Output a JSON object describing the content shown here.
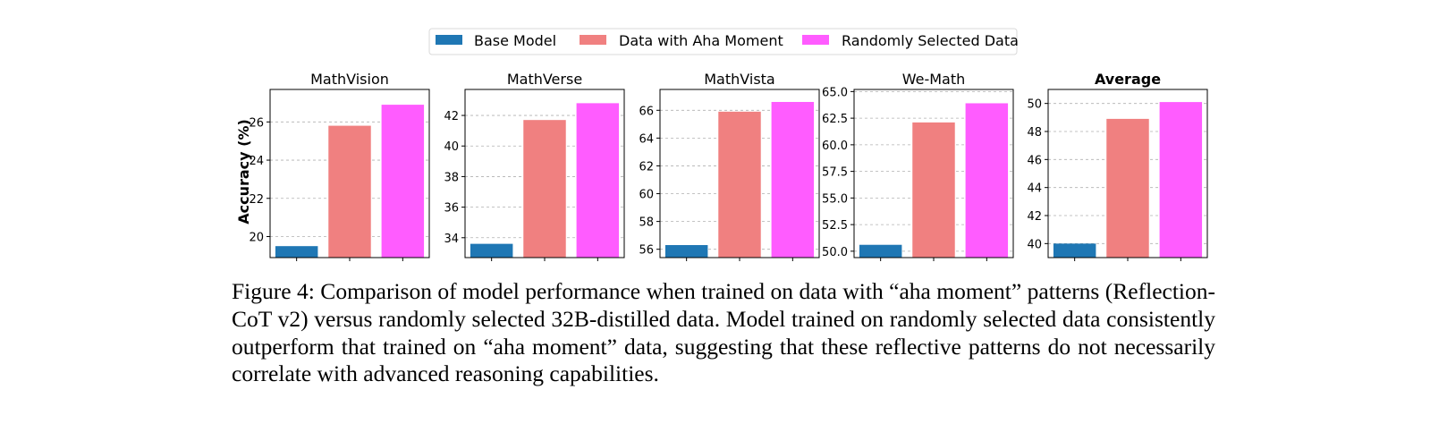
{
  "legend": {
    "items": [
      {
        "label": "Base Model",
        "color": "#1f77b4"
      },
      {
        "label": "Data with Aha Moment",
        "color": "#f08080"
      },
      {
        "label": "Randomly Selected Data",
        "color": "#ff5cff"
      }
    ]
  },
  "chart_data": [
    {
      "type": "bar",
      "title": "MathVision",
      "ylabel": "Accuracy (%)",
      "categories": [
        "Base Model",
        "Data with Aha Moment",
        "Randomly Selected Data"
      ],
      "values": [
        19.5,
        25.8,
        26.9
      ],
      "ylim": [
        18.9,
        27.7
      ],
      "yticks": [
        "20",
        "22",
        "24",
        "26"
      ],
      "grid": true
    },
    {
      "type": "bar",
      "title": "MathVerse",
      "categories": [
        "Base Model",
        "Data with Aha Moment",
        "Randomly Selected Data"
      ],
      "values": [
        33.6,
        41.7,
        42.8
      ],
      "ylim": [
        32.7,
        43.7
      ],
      "yticks": [
        "34",
        "36",
        "38",
        "40",
        "42"
      ],
      "grid": true
    },
    {
      "type": "bar",
      "title": "MathVista",
      "categories": [
        "Base Model",
        "Data with Aha Moment",
        "Randomly Selected Data"
      ],
      "values": [
        56.3,
        65.9,
        66.6
      ],
      "ylim": [
        55.4,
        67.5
      ],
      "yticks": [
        "56",
        "58",
        "60",
        "62",
        "64",
        "66"
      ],
      "grid": true
    },
    {
      "type": "bar",
      "title": "We-Math",
      "categories": [
        "Base Model",
        "Data with Aha Moment",
        "Randomly Selected Data"
      ],
      "values": [
        50.6,
        62.1,
        63.9
      ],
      "ylim": [
        49.4,
        65.2
      ],
      "yticks": [
        "50.0",
        "52.5",
        "55.0",
        "57.5",
        "60.0",
        "62.5",
        "65.0"
      ],
      "grid": true
    },
    {
      "type": "bar",
      "title": "Average",
      "categories": [
        "Base Model",
        "Data with Aha Moment",
        "Randomly Selected Data"
      ],
      "values": [
        40.0,
        48.9,
        50.1
      ],
      "ylim": [
        39.0,
        51.0
      ],
      "yticks": [
        "40",
        "42",
        "44",
        "46",
        "48",
        "50"
      ],
      "grid": true
    }
  ],
  "caption": "Figure 4: Comparison of model performance when trained on data with “aha moment” patterns (Reflection-CoT v2) versus randomly selected 32B-distilled data. Model trained on randomly selected data consistently outperform that trained on “aha moment” data, suggesting that these reflective patterns do not necessarily correlate with advanced reasoning capabilities."
}
